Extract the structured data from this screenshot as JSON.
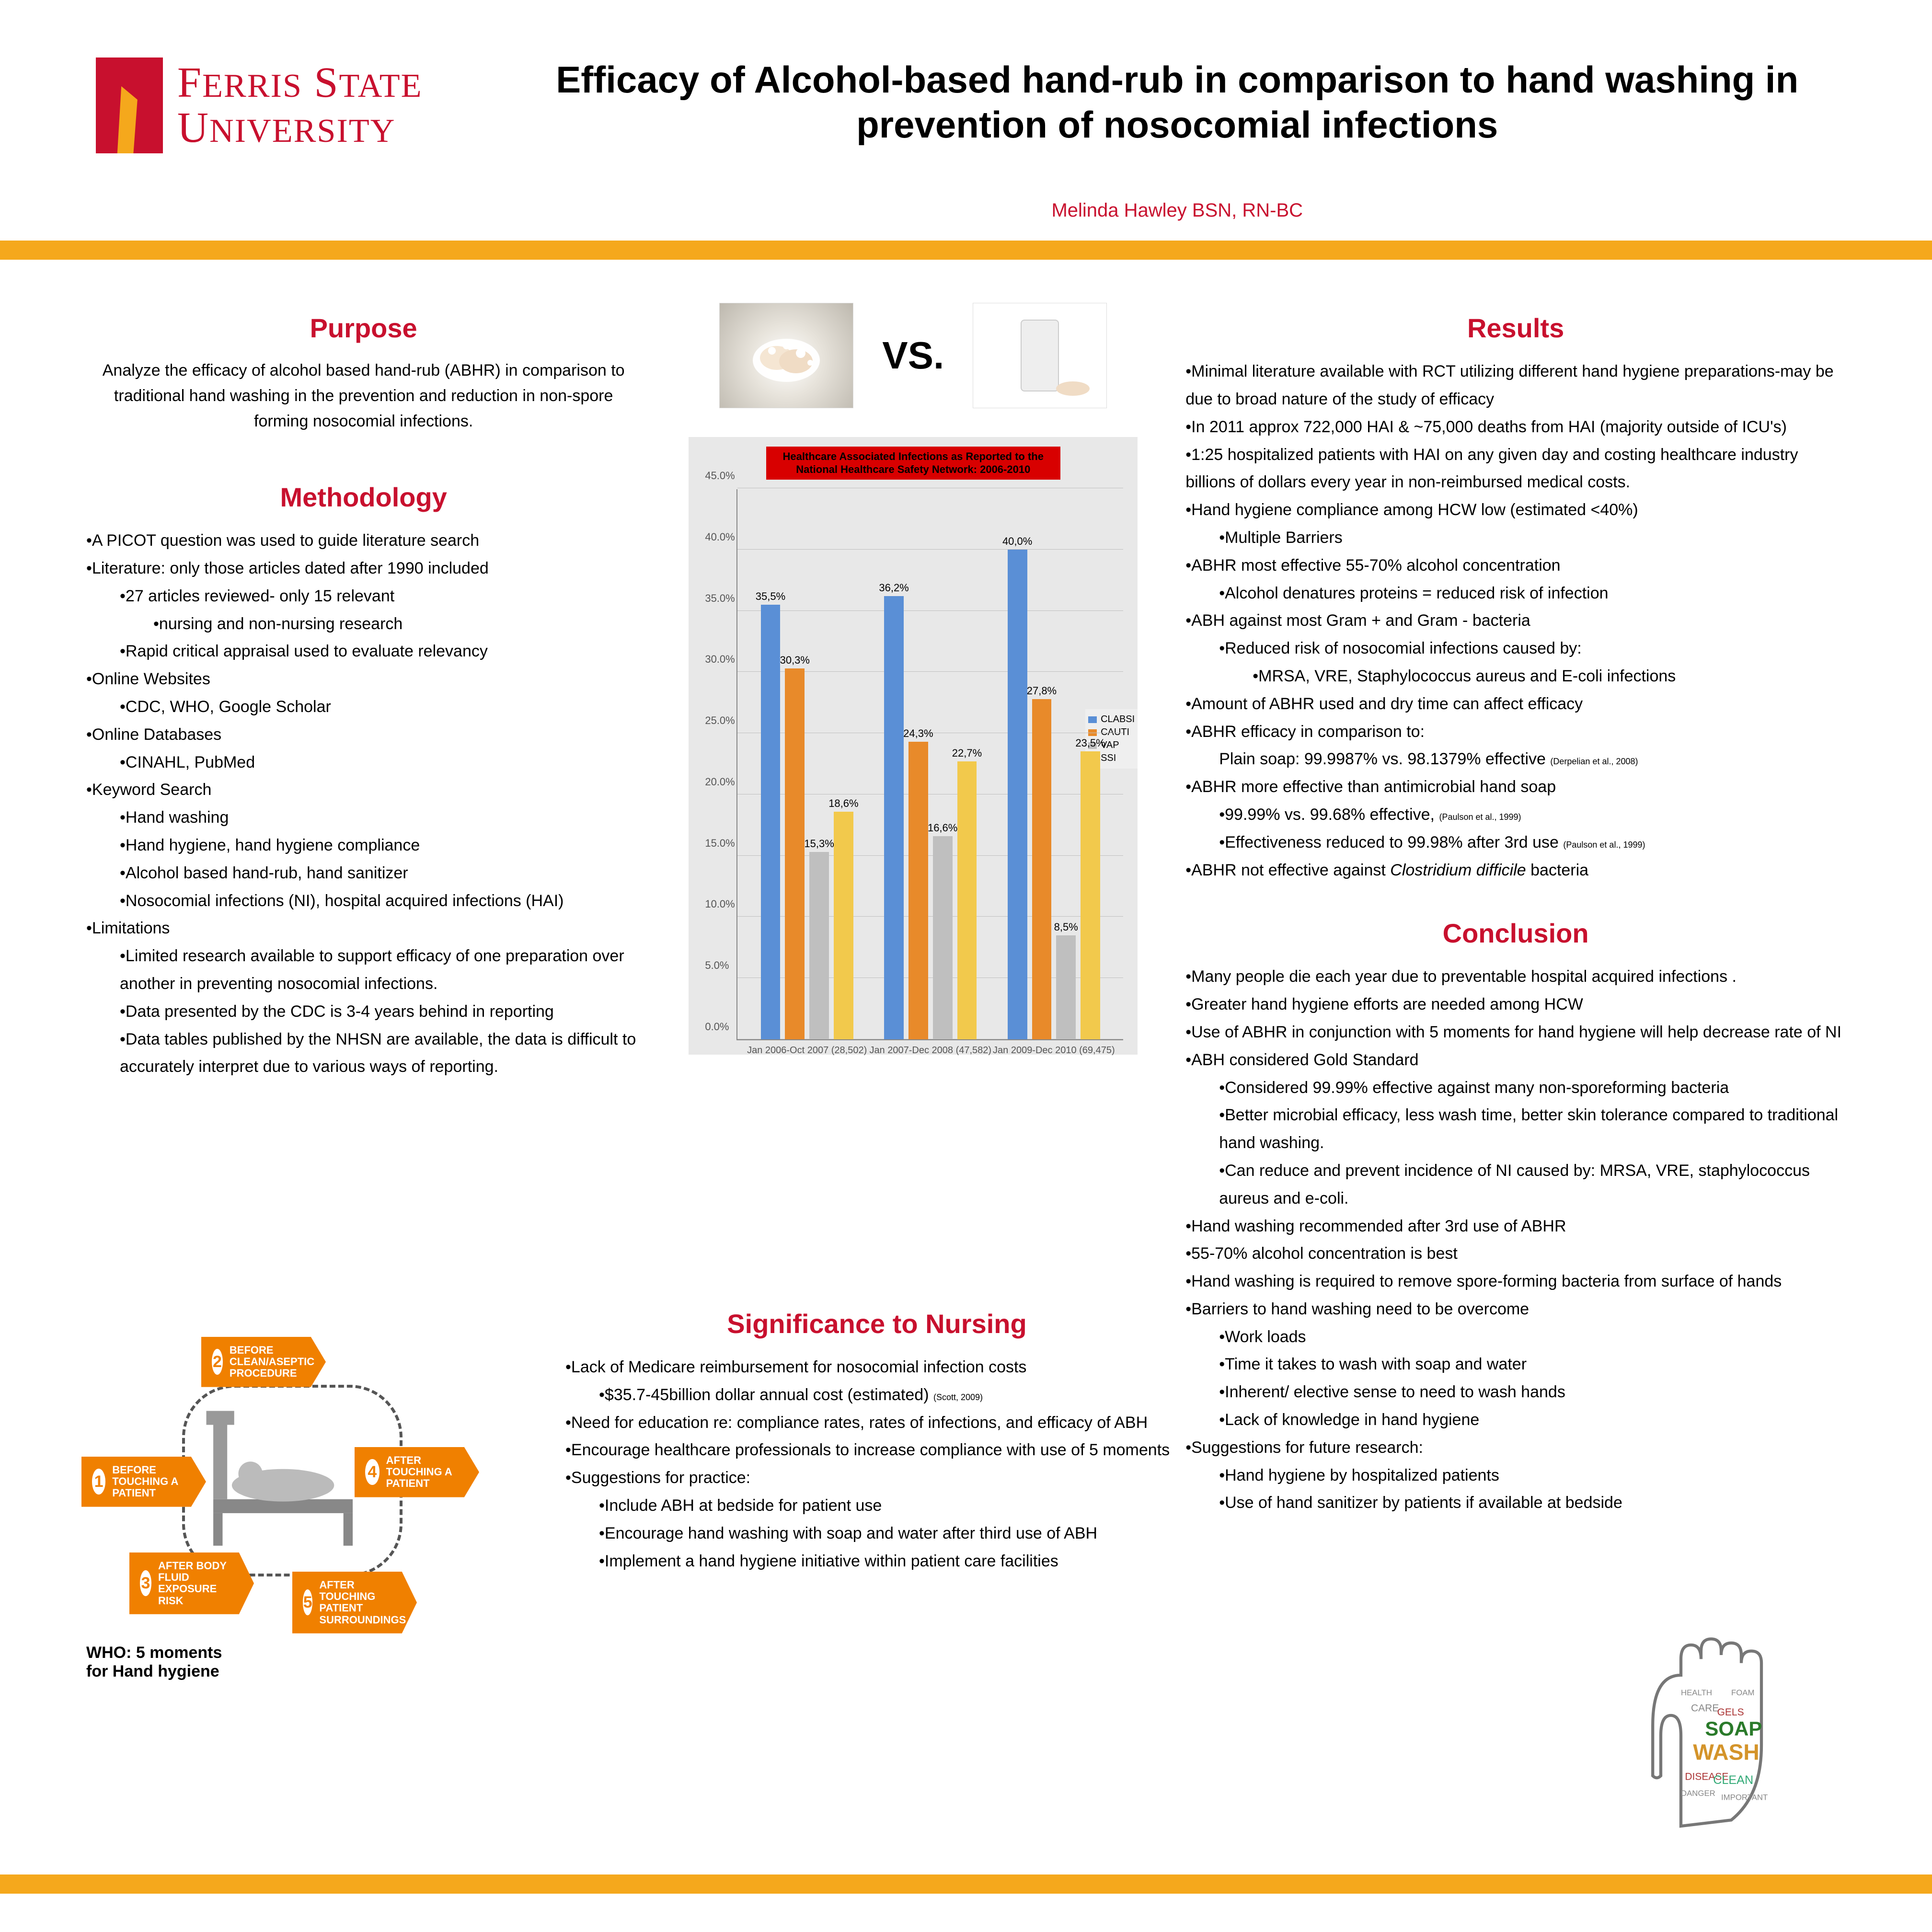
{
  "logo": {
    "line1_a": "F",
    "line1_b": "ERRIS",
    "line1_c": " S",
    "line1_d": "TATE",
    "line2_a": "U",
    "line2_b": "NIVERSITY"
  },
  "title": "Efficacy of Alcohol-based hand-rub in comparison to hand washing in prevention of nosocomial infections",
  "author": "Melinda Hawley BSN, RN-BC",
  "purpose": {
    "heading": "Purpose",
    "text": "Analyze the efficacy of alcohol based hand-rub (ABHR) in comparison to traditional hand washing in the prevention and reduction in non-spore forming nosocomial infections."
  },
  "methodology": {
    "heading": "Methodology",
    "items": [
      {
        "t": "•A PICOT question was  used to guide literature search",
        "l": 1
      },
      {
        "t": "•Literature: only those  articles dated after 1990 included",
        "l": 1
      },
      {
        "t": "•27 articles reviewed- only 15 relevant",
        "l": 2
      },
      {
        "t": "•nursing and non-nursing research",
        "l": 3
      },
      {
        "t": "•Rapid critical appraisal used to evaluate relevancy",
        "l": 2
      },
      {
        "t": "•Online Websites",
        "l": 1
      },
      {
        "t": "•CDC, WHO, Google Scholar",
        "l": 2
      },
      {
        "t": "•Online Databases",
        "l": 1
      },
      {
        "t": "•CINAHL, PubMed",
        "l": 2
      },
      {
        "t": "•Keyword Search",
        "l": 1
      },
      {
        "t": "•Hand washing",
        "l": 2
      },
      {
        "t": "•Hand hygiene, hand hygiene compliance",
        "l": 2
      },
      {
        "t": "•Alcohol based hand-rub, hand sanitizer",
        "l": 2
      },
      {
        "t": "•Nosocomial infections (NI), hospital acquired infections (HAI)",
        "l": 2
      },
      {
        "t": "•Limitations",
        "l": 1
      },
      {
        "t": "•Limited research available to support efficacy of one preparation over another in preventing nosocomial infections.",
        "l": 2
      },
      {
        "t": "•Data presented by the CDC is 3-4 years behind in reporting",
        "l": 2
      },
      {
        "t": "•Data tables published by the NHSN are available, the data is difficult to accurately interpret due to various ways of reporting.",
        "l": 2
      }
    ]
  },
  "vs": {
    "label": "VS."
  },
  "chart": {
    "title": "Healthcare Associated Infections as Reported to the National Healthcare Safety Network: 2006-2010",
    "type": "bar",
    "ymax": 45,
    "ytick_step": 5,
    "series_colors": {
      "CLABSI": "#5a8fd6",
      "CAUTI": "#e88a2a",
      "VAP": "#bfbfbf",
      "SSI": "#f2c94c"
    },
    "series_order": [
      "CLABSI",
      "CAUTI",
      "VAP",
      "SSI"
    ],
    "groups": [
      {
        "xlabel": "Jan 2006-Oct 2007 (28,502)",
        "values": {
          "CLABSI": 35.5,
          "CAUTI": 30.3,
          "VAP": 15.3,
          "SSI": 18.6
        },
        "labels": {
          "CLABSI": "35,5%",
          "CAUTI": "30,3%",
          "VAP": "15,3%",
          "SSI": "18,6%"
        }
      },
      {
        "xlabel": "Jan 2007-Dec 2008 (47,582)",
        "values": {
          "CLABSI": 36.2,
          "CAUTI": 24.3,
          "VAP": 16.6,
          "SSI": 22.7
        },
        "labels": {
          "CLABSI": "36,2%",
          "CAUTI": "24,3%",
          "VAP": "16,6%",
          "SSI": "22,7%"
        }
      },
      {
        "xlabel": "Jan 2009-Dec 2010 (69,475)",
        "values": {
          "CLABSI": 40.0,
          "CAUTI": 27.8,
          "VAP": 8.5,
          "SSI": 23.5
        },
        "labels": {
          "CLABSI": "40,0%",
          "CAUTI": "27,8%",
          "VAP": "8,5%",
          "SSI": "23,5%"
        }
      }
    ],
    "background_color": "#e8e8e8",
    "grid_color": "#c0c0c0"
  },
  "significance": {
    "heading": "Significance to Nursing",
    "items": [
      {
        "t": "•Lack of Medicare reimbursement for nosocomial infection costs",
        "l": 1
      },
      {
        "t": "•$35.7-45billion dollar annual cost (estimated)",
        "l": 2,
        "cite": "(Scott, 2009)"
      },
      {
        "t": "•Need for education re: compliance rates, rates of infections, and efficacy of ABH",
        "l": 1
      },
      {
        "t": "•Encourage healthcare professionals to increase compliance with use of 5 moments",
        "l": 1
      },
      {
        "t": "•Suggestions for practice:",
        "l": 1
      },
      {
        "t": "•Include ABH at bedside for patient use",
        "l": 2
      },
      {
        "t": "•Encourage hand washing with soap and water after third use of ABH",
        "l": 2
      },
      {
        "t": "•Implement a hand hygiene initiative within patient care facilities",
        "l": 2
      }
    ]
  },
  "moments": {
    "caption_l1": "WHO: 5 moments",
    "caption_l2": "for Hand hygiene",
    "arrows": [
      {
        "n": "1",
        "t": "BEFORE TOUCHING A PATIENT"
      },
      {
        "n": "2",
        "t": "BEFORE CLEAN/ASEPTIC PROCEDURE"
      },
      {
        "n": "3",
        "t": "AFTER BODY FLUID EXPOSURE RISK"
      },
      {
        "n": "4",
        "t": "AFTER TOUCHING A PATIENT"
      },
      {
        "n": "5",
        "t": "AFTER TOUCHING PATIENT SURROUNDINGS"
      }
    ]
  },
  "results": {
    "heading": "Results",
    "items": [
      {
        "t": "•Minimal literature available with RCT utilizing different hand hygiene preparations-may be due to broad nature of the study of efficacy",
        "l": 1
      },
      {
        "t": "•In 2011 approx 722,000 HAI  & ~75,000 deaths from HAI (majority outside of ICU's)",
        "l": 1
      },
      {
        "t": "•1:25 hospitalized patients with HAI on any given day and costing healthcare industry billions of dollars every year in non-reimbursed medical costs.",
        "l": 1
      },
      {
        "t": "•Hand hygiene compliance among HCW low (estimated <40%)",
        "l": 1
      },
      {
        "t": "•Multiple Barriers",
        "l": 2
      },
      {
        "t": "•ABHR most effective 55-70% alcohol concentration",
        "l": 1
      },
      {
        "t": "•Alcohol denatures proteins = reduced risk of infection",
        "l": 2
      },
      {
        "t": "•ABH against most Gram + and Gram - bacteria",
        "l": 1
      },
      {
        "t": "•Reduced risk of nosocomial infections caused by:",
        "l": 2
      },
      {
        "t": "•MRSA, VRE, Staphylococcus aureus and E-coli infections",
        "l": 3
      },
      {
        "t": "•Amount of ABHR used and dry time can affect efficacy",
        "l": 1
      },
      {
        "t": "•ABHR efficacy in comparison to:",
        "l": 1
      },
      {
        "t": "Plain soap: 99.9987% vs. 98.1379% effective",
        "l": 2,
        "cite": "(Derpelian et al., 2008)"
      },
      {
        "t": "•ABHR more effective than antimicrobial hand soap",
        "l": 1
      },
      {
        "t": "•99.99% vs. 99.68% effective,",
        "l": 2,
        "cite": "(Paulson et al., 1999)"
      },
      {
        "t": "•Effectiveness reduced to 99.98% after 3rd use",
        "l": 2,
        "cite": "(Paulson et al., 1999)"
      },
      {
        "t": "•ABHR not effective against ",
        "l": 1,
        "italic": "Clostridium difficile",
        "tail": " bacteria"
      }
    ]
  },
  "conclusion": {
    "heading": "Conclusion",
    "items": [
      {
        "t": "•Many people die each year due to preventable hospital acquired infections .",
        "l": 1
      },
      {
        "t": "•Greater hand hygiene efforts are needed among HCW",
        "l": 1
      },
      {
        "t": "•Use of ABHR in conjunction with 5 moments for hand hygiene will help decrease rate of NI",
        "l": 1
      },
      {
        "t": "•ABH considered Gold Standard",
        "l": 1
      },
      {
        "t": "•Considered 99.99% effective against many non-sporeforming bacteria",
        "l": 2
      },
      {
        "t": "•Better microbial efficacy, less wash time, better skin tolerance compared to traditional hand washing.",
        "l": 2
      },
      {
        "t": "•Can reduce and prevent incidence of NI caused by: MRSA, VRE, staphylococcus aureus and e-coli.",
        "l": 2
      },
      {
        "t": "•Hand washing recommended after 3rd use of ABHR",
        "l": 1
      },
      {
        "t": "•55-70% alcohol concentration is best",
        "l": 1
      },
      {
        "t": "•Hand washing is required to remove spore-forming bacteria from surface of hands",
        "l": 1
      },
      {
        "t": "•Barriers to hand washing  need to be overcome",
        "l": 1
      },
      {
        "t": "•Work loads",
        "l": 2
      },
      {
        "t": "•Time it takes to wash with soap and water",
        "l": 2
      },
      {
        "t": "•Inherent/ elective sense to need to wash hands",
        "l": 2
      },
      {
        "t": "•Lack of knowledge in hand hygiene",
        "l": 2
      },
      {
        "t": "•Suggestions for future research:",
        "l": 1
      },
      {
        "t": "•Hand hygiene by hospitalized patients",
        "l": 2
      },
      {
        "t": "•Use of hand sanitizer by patients if available at bedside",
        "l": 2
      }
    ]
  }
}
